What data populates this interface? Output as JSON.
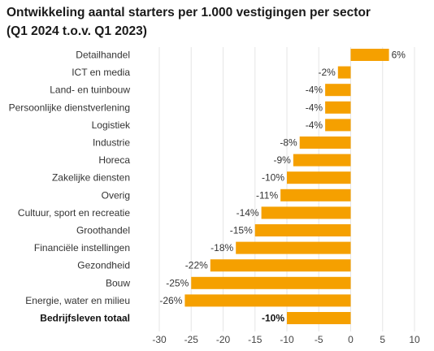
{
  "title_line1": "Ontwikkeling aantal starters per 1.000 vestigingen per sector",
  "title_line2": "(Q1 2024 t.o.v. Q1 2023)",
  "chart_data": {
    "type": "bar",
    "orientation": "horizontal",
    "categories": [
      "Detailhandel",
      "ICT en media",
      "Land- en tuinbouw",
      "Persoonlijke dienstverlening",
      "Logistiek",
      "Industrie",
      "Horeca",
      "Zakelijke diensten",
      "Overig",
      "Cultuur, sport en recreatie",
      "Groothandel",
      "Financiële instellingen",
      "Gezondheid",
      "Bouw",
      "Energie, water en milieu",
      "Bedrijfsleven totaal"
    ],
    "values": [
      6,
      -2,
      -4,
      -4,
      -4,
      -8,
      -9,
      -10,
      -11,
      -14,
      -15,
      -18,
      -22,
      -25,
      -26,
      -10
    ],
    "value_labels": [
      "6%",
      "-2%",
      "-4%",
      "-4%",
      "-4%",
      "-8%",
      "-9%",
      "-10%",
      "-11%",
      "-14%",
      "-15%",
      "-18%",
      "-22%",
      "-25%",
      "-26%",
      "-10%"
    ],
    "bold_categories": [
      "Bedrijfsleven totaal"
    ],
    "xlim": [
      -30,
      10
    ],
    "xticks": [
      -30,
      -25,
      -20,
      -15,
      -10,
      -5,
      0,
      5,
      10
    ],
    "xtick_labels": [
      "-30",
      "-25",
      "-20",
      "-15",
      "-10",
      "-5",
      "0",
      "5",
      "10"
    ],
    "grid": "vertical",
    "bar_color": "#F5A000"
  }
}
